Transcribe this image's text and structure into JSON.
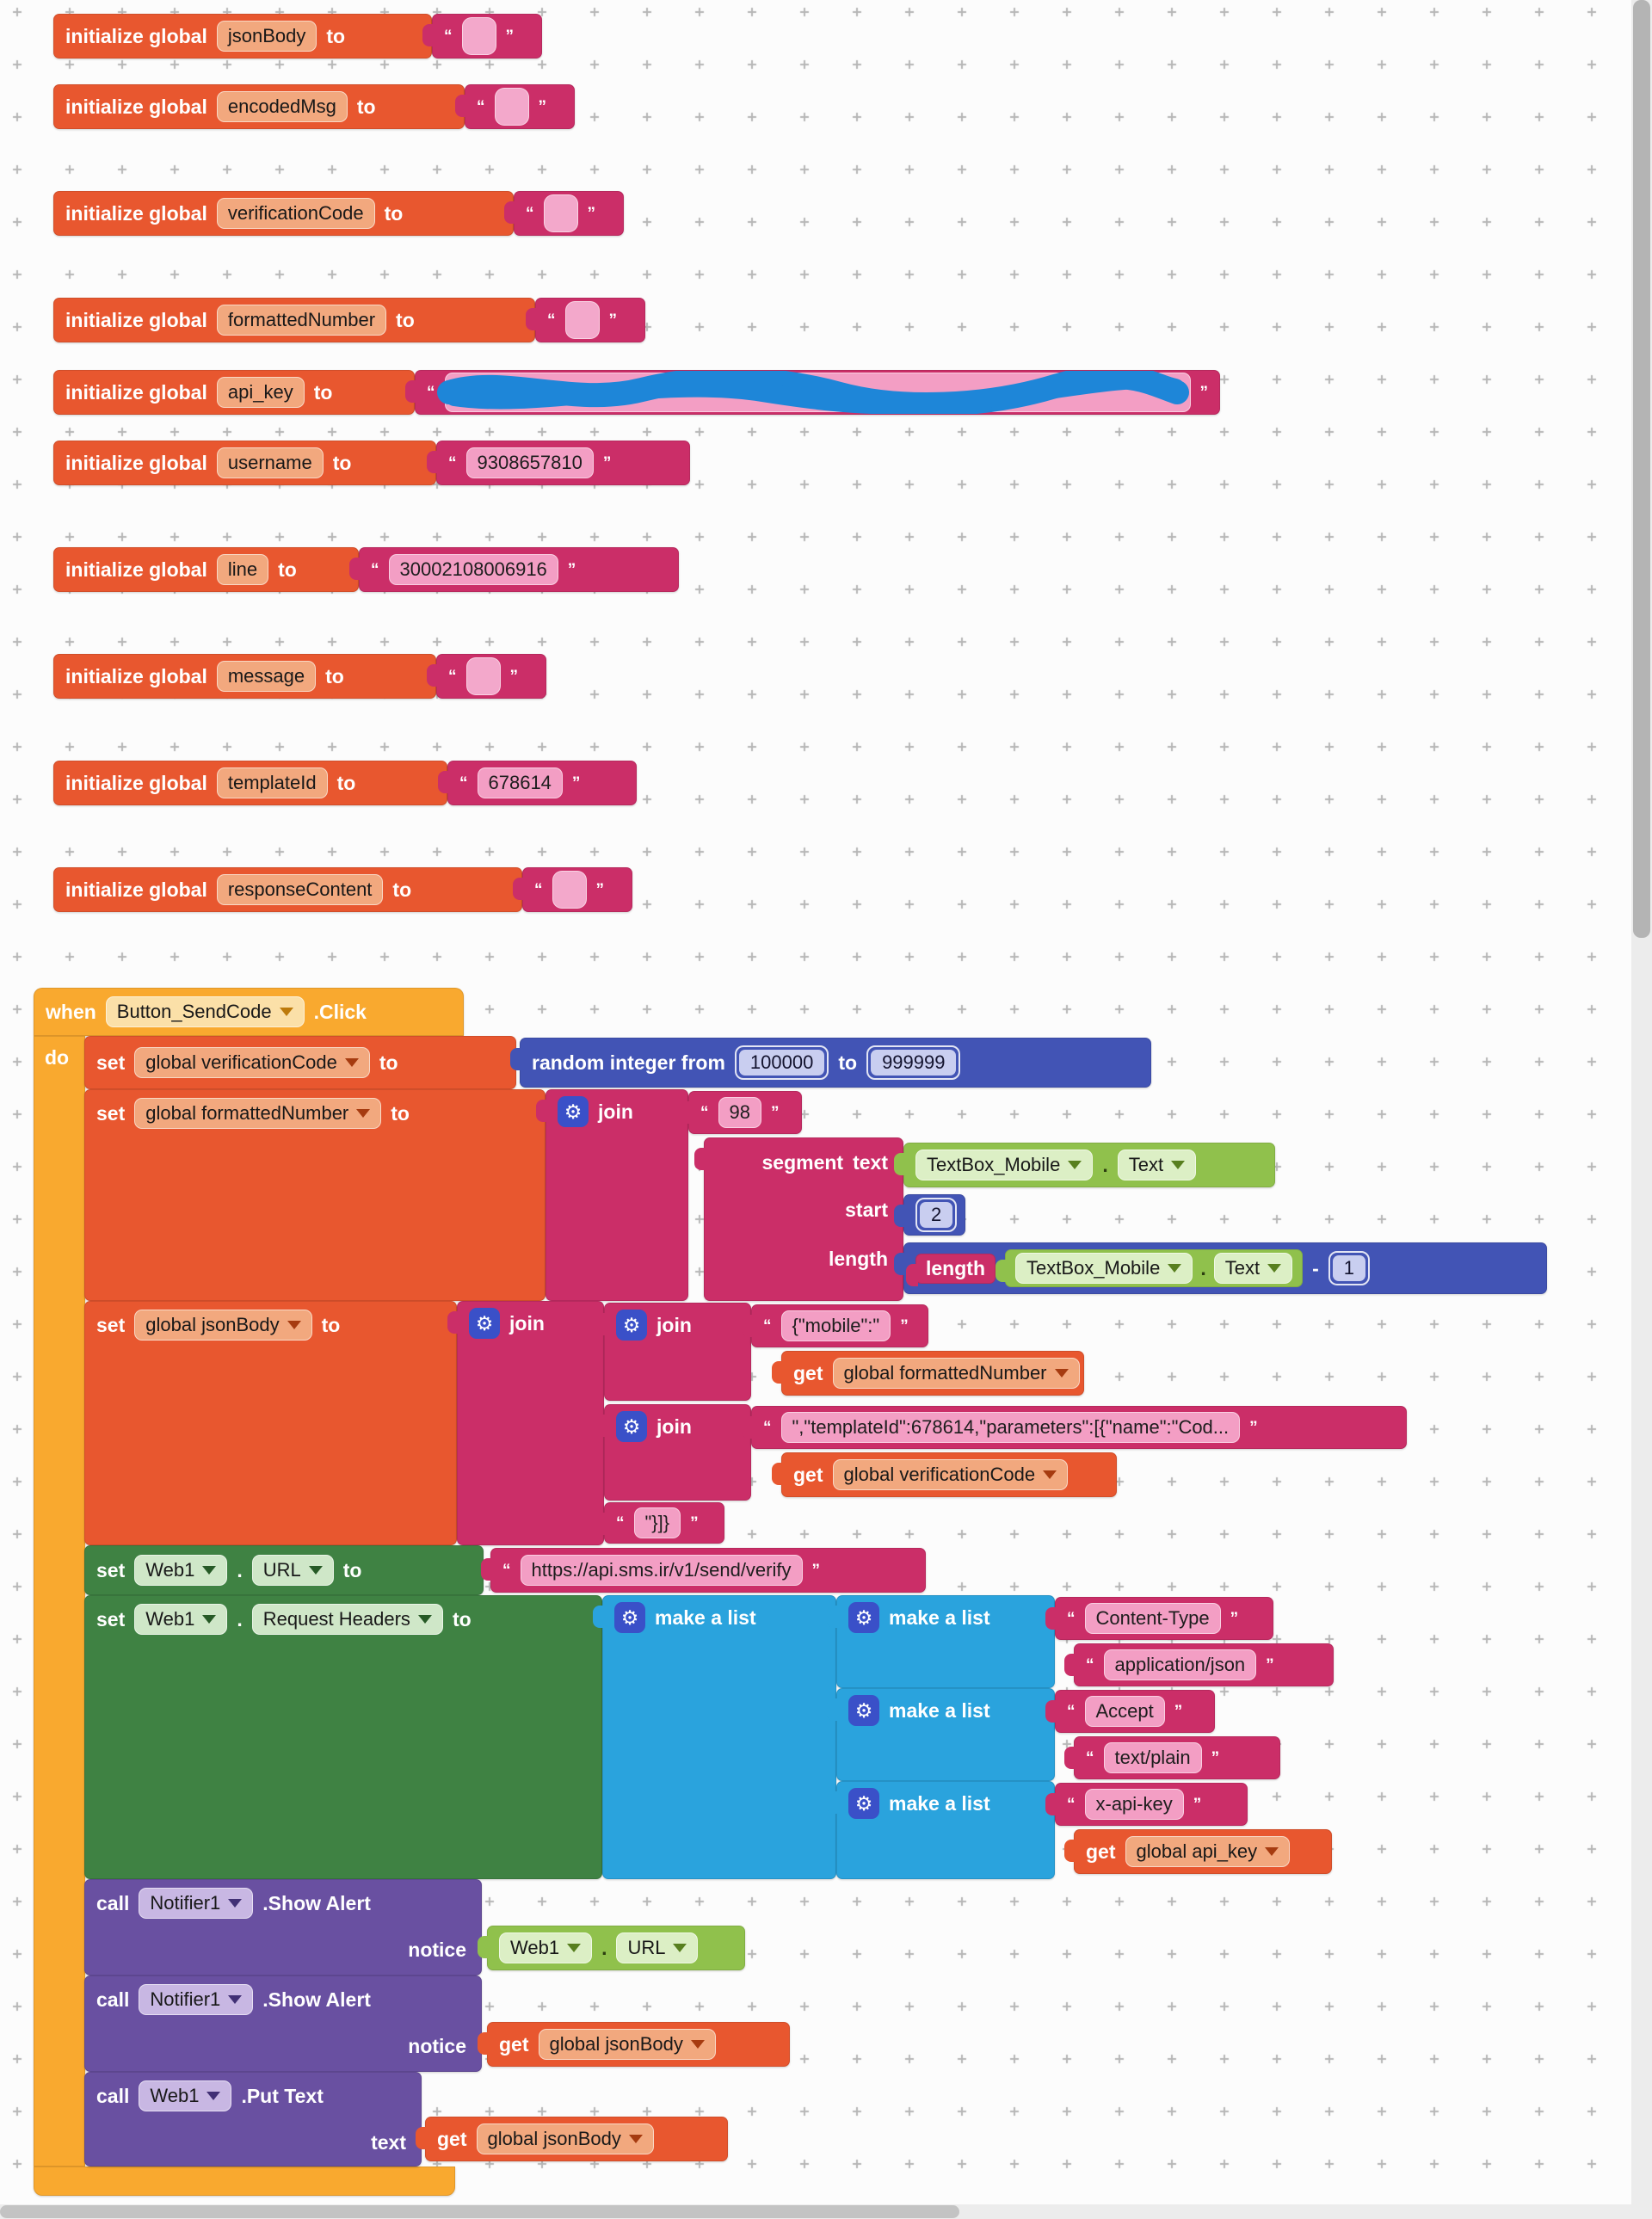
{
  "ui": {
    "q_open": "“",
    "q_close": "”",
    "gear": "⚙",
    "minus": "-",
    "dot": "."
  },
  "labels": {
    "initialize": "initialize global",
    "to": "to",
    "set": "set",
    "get": "get",
    "call": "call",
    "when": "when",
    "do": "do",
    "join": "join",
    "make_a_list": "make a list",
    "random": "random integer from",
    "segment": "segment",
    "text": "text",
    "start": "start",
    "length": "length",
    "notice": "notice"
  },
  "globals": [
    {
      "name": "jsonBody",
      "value": ""
    },
    {
      "name": "encodedMsg",
      "value": ""
    },
    {
      "name": "verificationCode",
      "value": ""
    },
    {
      "name": "formattedNumber",
      "value": ""
    },
    {
      "name": "api_key",
      "value": "",
      "redacted": true
    },
    {
      "name": "username",
      "value": "9308657810"
    },
    {
      "name": "line",
      "value": "30002108006916"
    },
    {
      "name": "message",
      "value": ""
    },
    {
      "name": "templateId",
      "value": "678614"
    },
    {
      "name": "responseContent",
      "value": ""
    }
  ],
  "event": {
    "component": "Button_SendCode",
    "event_name": ".Click",
    "set_verification": "global verificationCode",
    "set_formatted": "global formattedNumber",
    "set_jsonbody": "global jsonBody",
    "random": {
      "from": "100000",
      "to": "999999"
    },
    "join98": "98",
    "textbox": {
      "component": "TextBox_Mobile",
      "prop": "Text"
    },
    "start_value": "2",
    "minus_value": "1",
    "strings": {
      "mobile_open": "{\"mobile\":\"",
      "template_part": "\",\"templateId\":678614,\"parameters\":[{\"name\":\"Cod...",
      "json_close": "\"}]}"
    },
    "getters": {
      "formatted": "global formattedNumber",
      "verification": "global verificationCode",
      "jsonbody": "global jsonBody",
      "api_key": "global api_key"
    },
    "web": {
      "component": "Web1",
      "url_prop": "URL",
      "headers_prop": "Request Headers",
      "url_value": "https://api.sms.ir/v1/send/verify",
      "put_method": ".Put Text"
    },
    "notifier": {
      "component": "Notifier1",
      "method": ".Show Alert"
    },
    "headers": [
      {
        "key": "Content-Type",
        "value": "application/json"
      },
      {
        "key": "Accept",
        "value": "text/plain"
      },
      {
        "key": "x-api-key"
      }
    ]
  }
}
